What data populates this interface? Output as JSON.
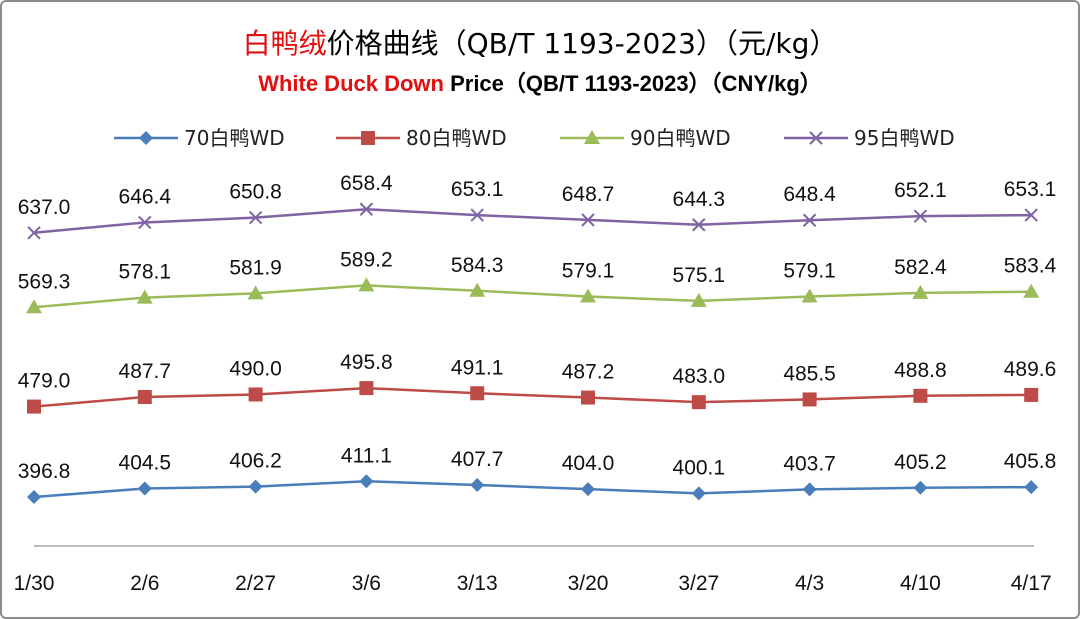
{
  "title": {
    "cn_highlight": "白鸭绒",
    "cn_rest": "价格曲线（QB/T 1193-2023）（元/kg）",
    "en_highlight": "White Duck Down",
    "en_rest": " Price（QB/T 1193-2023）（CNY/kg）"
  },
  "chart_data": {
    "type": "line",
    "title": "白鸭绒价格曲线（QB/T 1193-2023）（元/kg）",
    "subtitle": "White Duck Down Price（QB/T 1193-2023）（CNY/kg）",
    "categories": [
      "1/30",
      "2/6",
      "2/27",
      "3/6",
      "3/13",
      "3/20",
      "3/27",
      "4/3",
      "4/10",
      "4/17"
    ],
    "legend_position": "top",
    "grid": false,
    "series": [
      {
        "name": "70白鸭WD",
        "color": "#4a7ebb",
        "marker": "diamond",
        "values": [
          396.8,
          404.5,
          406.2,
          411.1,
          407.7,
          404.0,
          400.1,
          403.7,
          405.2,
          405.8
        ],
        "labels": [
          "396.8",
          "404.5",
          "406.2",
          "411.1",
          "407.7",
          "404.0",
          "400.1",
          "403.7",
          "405.2",
          "405.8"
        ]
      },
      {
        "name": "80白鸭WD",
        "color": "#be4b48",
        "marker": "square",
        "values": [
          479.0,
          487.7,
          490.0,
          495.8,
          491.1,
          487.2,
          483.0,
          485.5,
          488.8,
          489.6
        ],
        "labels": [
          "479.0",
          "487.7",
          "490.0",
          "495.8",
          "491.1",
          "487.2",
          "483.0",
          "485.5",
          "488.8",
          "489.6"
        ]
      },
      {
        "name": "90白鸭WD",
        "color": "#9bbb59",
        "marker": "triangle",
        "values": [
          569.3,
          578.1,
          581.9,
          589.2,
          584.3,
          579.1,
          575.1,
          579.1,
          582.4,
          583.4
        ],
        "labels": [
          "569.3",
          "578.1",
          "581.9",
          "589.2",
          "584.3",
          "579.1",
          "575.1",
          "579.1",
          "582.4",
          "583.4"
        ]
      },
      {
        "name": "95白鸭WD",
        "color": "#7f63a2",
        "marker": "x",
        "values": [
          637.0,
          646.4,
          650.8,
          658.4,
          653.1,
          648.7,
          644.3,
          648.4,
          652.1,
          653.1
        ],
        "labels": [
          "637.0",
          "646.4",
          "650.8",
          "658.4",
          "653.1",
          "648.7",
          "644.3",
          "648.4",
          "652.1",
          "653.1"
        ]
      }
    ]
  }
}
